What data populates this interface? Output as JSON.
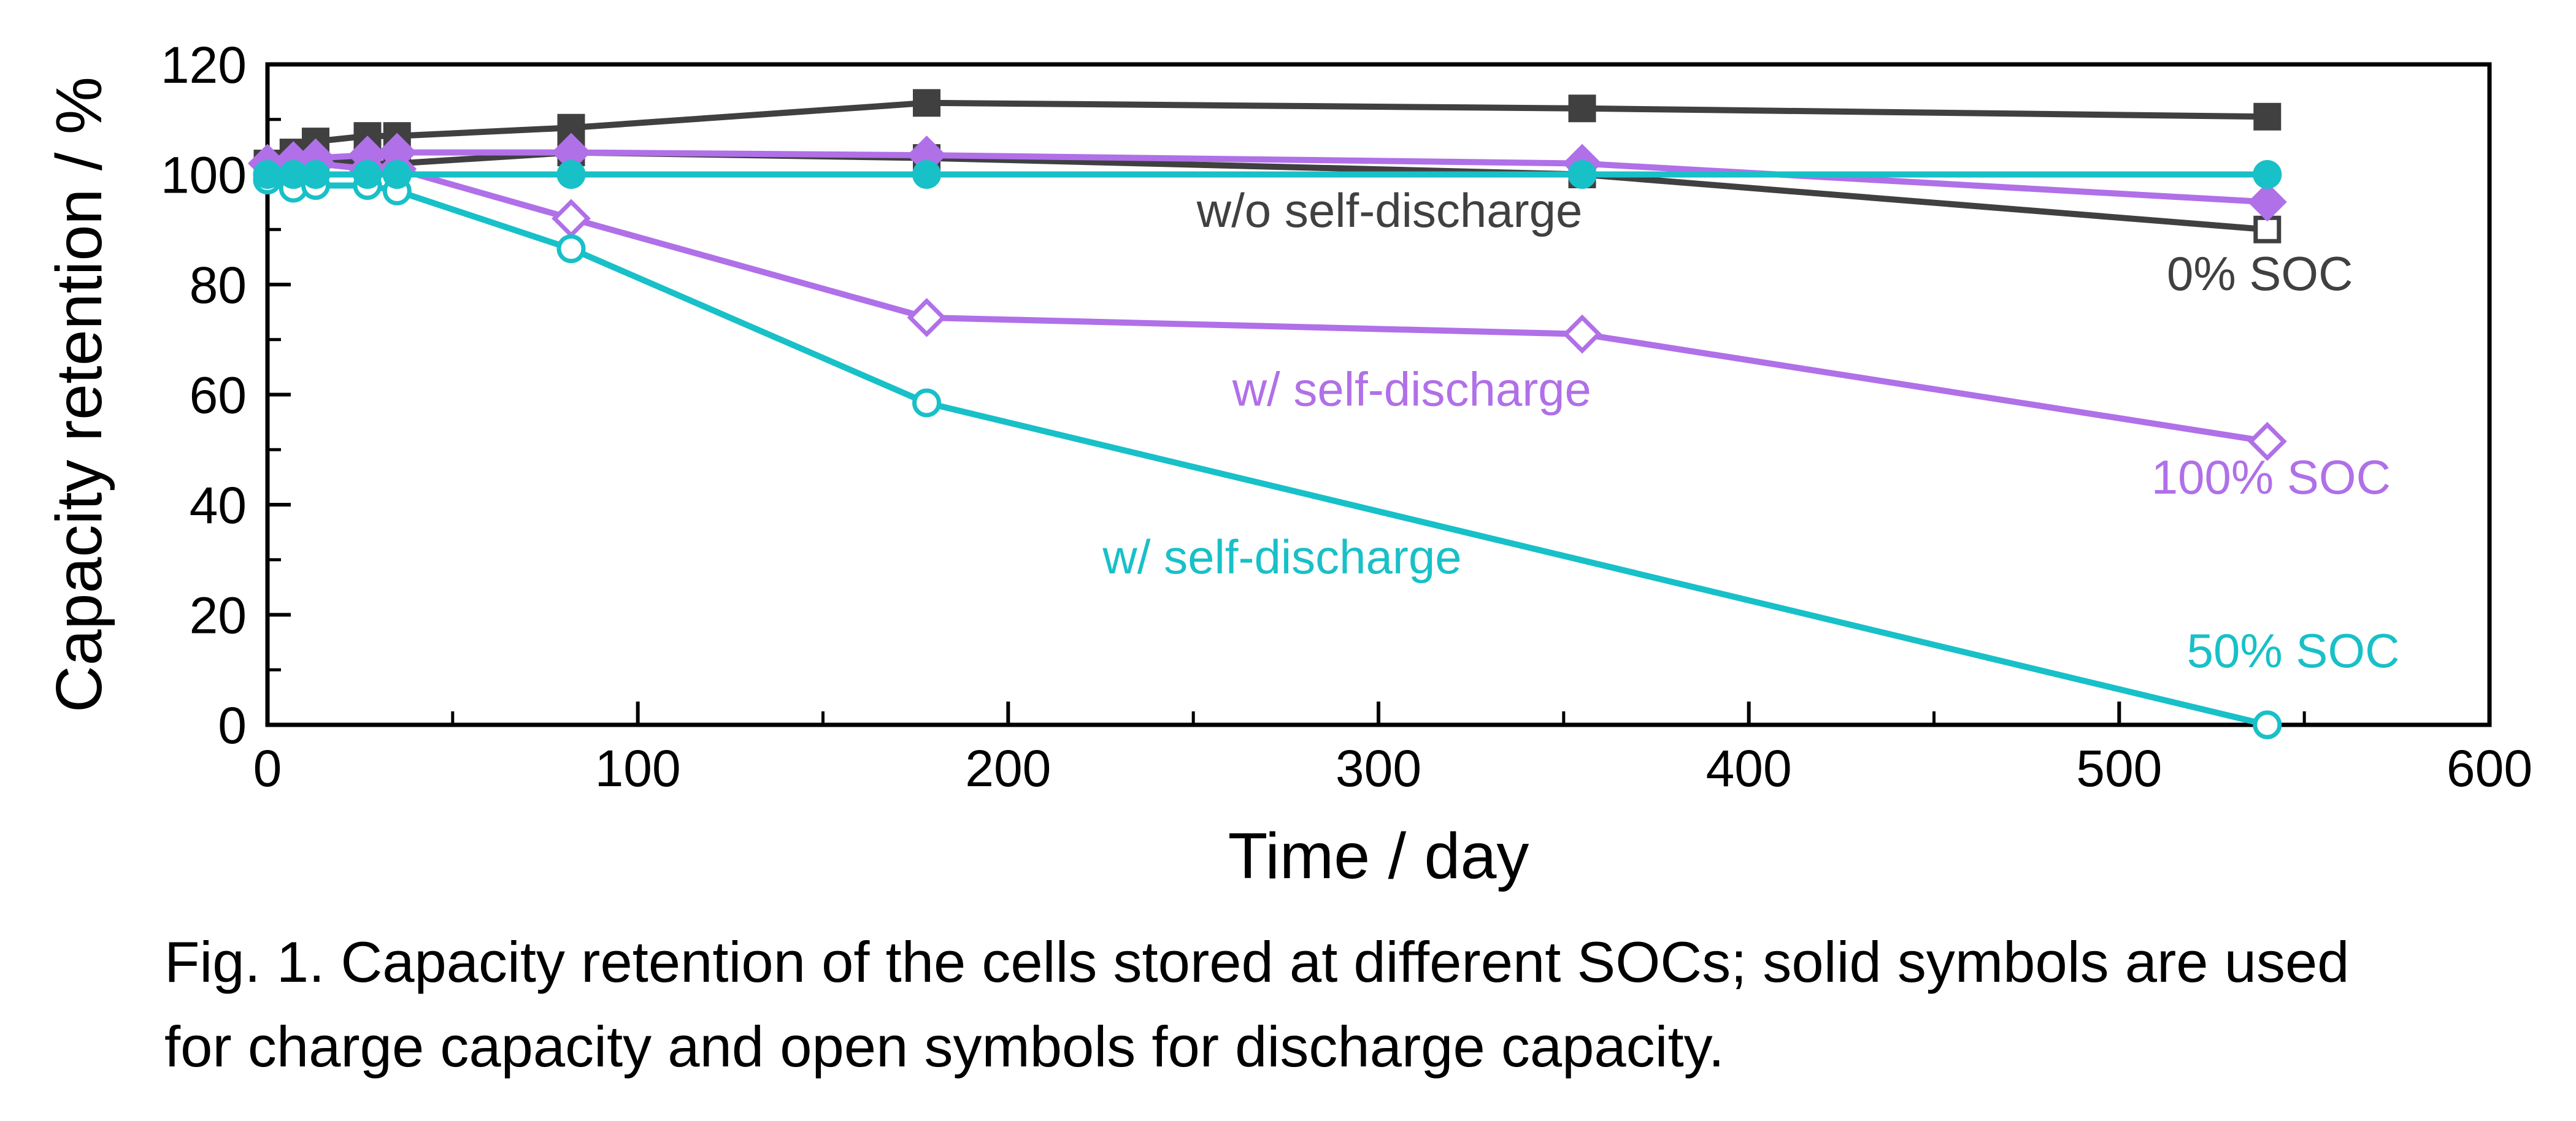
{
  "chart_data": {
    "type": "line",
    "xlabel": "Time / day",
    "ylabel": "Capacity retention / %",
    "xlim": [
      0,
      600
    ],
    "ylim": [
      0,
      120
    ],
    "x_ticks": [
      0,
      100,
      200,
      300,
      400,
      500,
      600
    ],
    "y_ticks": [
      0,
      20,
      40,
      60,
      80,
      100,
      120
    ],
    "colors": {
      "gray": "#404040",
      "purple": "#b070e8",
      "cyan": "#18c0c8"
    },
    "series": [
      {
        "name": "0% SOC charge",
        "color": "gray",
        "marker": "square",
        "filled": true,
        "x": [
          0,
          7,
          13,
          27,
          35,
          82,
          178,
          355,
          540
        ],
        "y": [
          102,
          104,
          106,
          107,
          107,
          108.5,
          113,
          112,
          110.5
        ]
      },
      {
        "name": "0% SOC discharge",
        "color": "gray",
        "marker": "square",
        "filled": false,
        "x": [
          0,
          7,
          13,
          27,
          35,
          82,
          178,
          355,
          540
        ],
        "y": [
          101,
          102,
          103,
          102,
          102,
          104,
          103,
          100,
          90
        ]
      },
      {
        "name": "100% SOC charge",
        "color": "purple",
        "marker": "diamond",
        "filled": true,
        "x": [
          0,
          7,
          13,
          27,
          35,
          82,
          178,
          355,
          540
        ],
        "y": [
          102,
          102.5,
          103,
          103.5,
          104,
          104,
          103.5,
          102,
          95
        ]
      },
      {
        "name": "100% SOC discharge",
        "color": "purple",
        "marker": "diamond",
        "filled": false,
        "x": [
          0,
          7,
          13,
          27,
          35,
          82,
          178,
          355,
          540
        ],
        "y": [
          102,
          102,
          102,
          101,
          101,
          92,
          74,
          71,
          51.5
        ]
      },
      {
        "name": "50% SOC charge",
        "color": "cyan",
        "marker": "circle",
        "filled": true,
        "x": [
          0,
          7,
          13,
          27,
          35,
          82,
          178,
          355,
          540
        ],
        "y": [
          100,
          100,
          100,
          100,
          100,
          100,
          100,
          100,
          100
        ]
      },
      {
        "name": "50% SOC discharge",
        "color": "cyan",
        "marker": "circle",
        "filled": false,
        "x": [
          0,
          7,
          13,
          27,
          35,
          82,
          178,
          540
        ],
        "y": [
          99,
          97.5,
          98,
          98,
          97,
          86.5,
          58.5,
          0
        ]
      }
    ],
    "annotations": [
      {
        "text": "w/o self-discharge",
        "color": "gray",
        "x": 303,
        "y": 90.5
      },
      {
        "text": "0% SOC",
        "color": "gray",
        "x": 538,
        "y": 79
      },
      {
        "text": "w/ self-discharge",
        "color": "purple",
        "x": 309,
        "y": 58
      },
      {
        "text": "100% SOC",
        "color": "purple",
        "x": 541,
        "y": 42
      },
      {
        "text": "w/ self-discharge",
        "color": "cyan",
        "x": 274,
        "y": 27.5
      },
      {
        "text": "50% SOC",
        "color": "cyan",
        "x": 547,
        "y": 10.5
      }
    ]
  },
  "caption": {
    "line1": "Fig. 1. Capacity retention of the cells stored at different SOCs; solid symbols are used",
    "line2": "for charge capacity and open symbols for discharge capacity."
  }
}
